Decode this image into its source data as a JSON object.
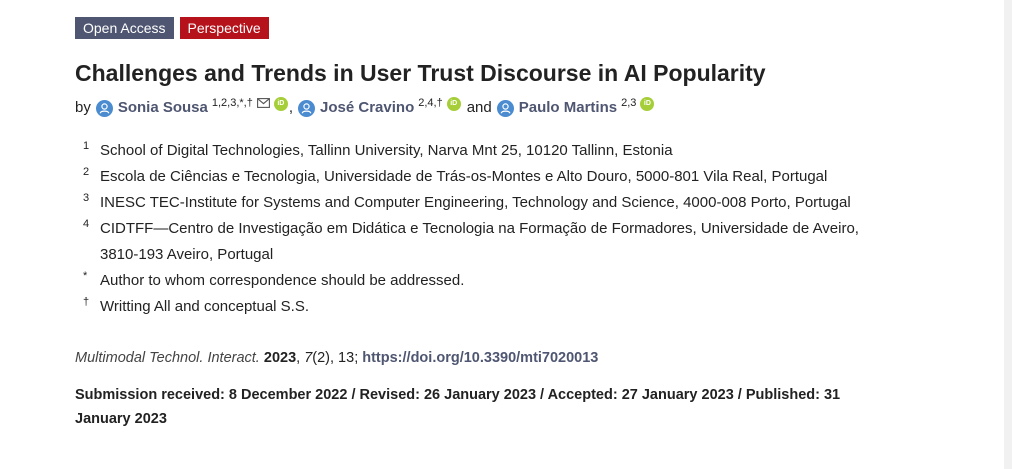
{
  "badges": {
    "open_access": "Open Access",
    "type": "Perspective"
  },
  "title": "Challenges and Trends in User Trust Discourse in AI Popularity",
  "authors": {
    "by": "by",
    "list": [
      {
        "name": "Sonia Sousa",
        "sup": "1,2,3,*,†"
      },
      {
        "name": "José Cravino",
        "sup": "2,4,†"
      },
      {
        "name": "Paulo Martins",
        "sup": "2,3"
      }
    ],
    "comma": ",",
    "and": "and",
    "orcid_label": "iD"
  },
  "affiliations": [
    {
      "num": "1",
      "text": "School of Digital Technologies, Tallinn University, Narva Mnt 25, 10120 Tallinn, Estonia"
    },
    {
      "num": "2",
      "text": "Escola de Ciências e Tecnologia, Universidade de Trás-os-Montes e Alto Douro, 5000-801 Vila Real, Portugal"
    },
    {
      "num": "3",
      "text": "INESC TEC-Institute for Systems and Computer Engineering, Technology and Science, 4000-008 Porto, Portugal"
    },
    {
      "num": "4",
      "text": "CIDTFF—Centro de Investigação em Didática e Tecnologia na Formação de Formadores, Universidade de Aveiro, 3810-193 Aveiro, Portugal"
    },
    {
      "num": "*",
      "text": "Author to whom correspondence should be addressed."
    },
    {
      "num": "†",
      "text": "Writting All and conceptual S.S."
    }
  ],
  "citation": {
    "journal": "Multimodal Technol. Interact.",
    "year": "2023",
    "volume": "7",
    "issue_pages": "(2), 13;",
    "doi": "https://doi.org/10.3390/mti7020013"
  },
  "history": "Submission received: 8 December 2022 / Revised: 26 January 2023 / Accepted: 27 January 2023 / Published: 31 January 2023",
  "colors": {
    "open_access_badge": "#4f5671",
    "perspective_badge": "#b5121b",
    "author_link": "#4f5671",
    "person_icon": "#4b8bd0",
    "orcid": "#a6ce39"
  }
}
